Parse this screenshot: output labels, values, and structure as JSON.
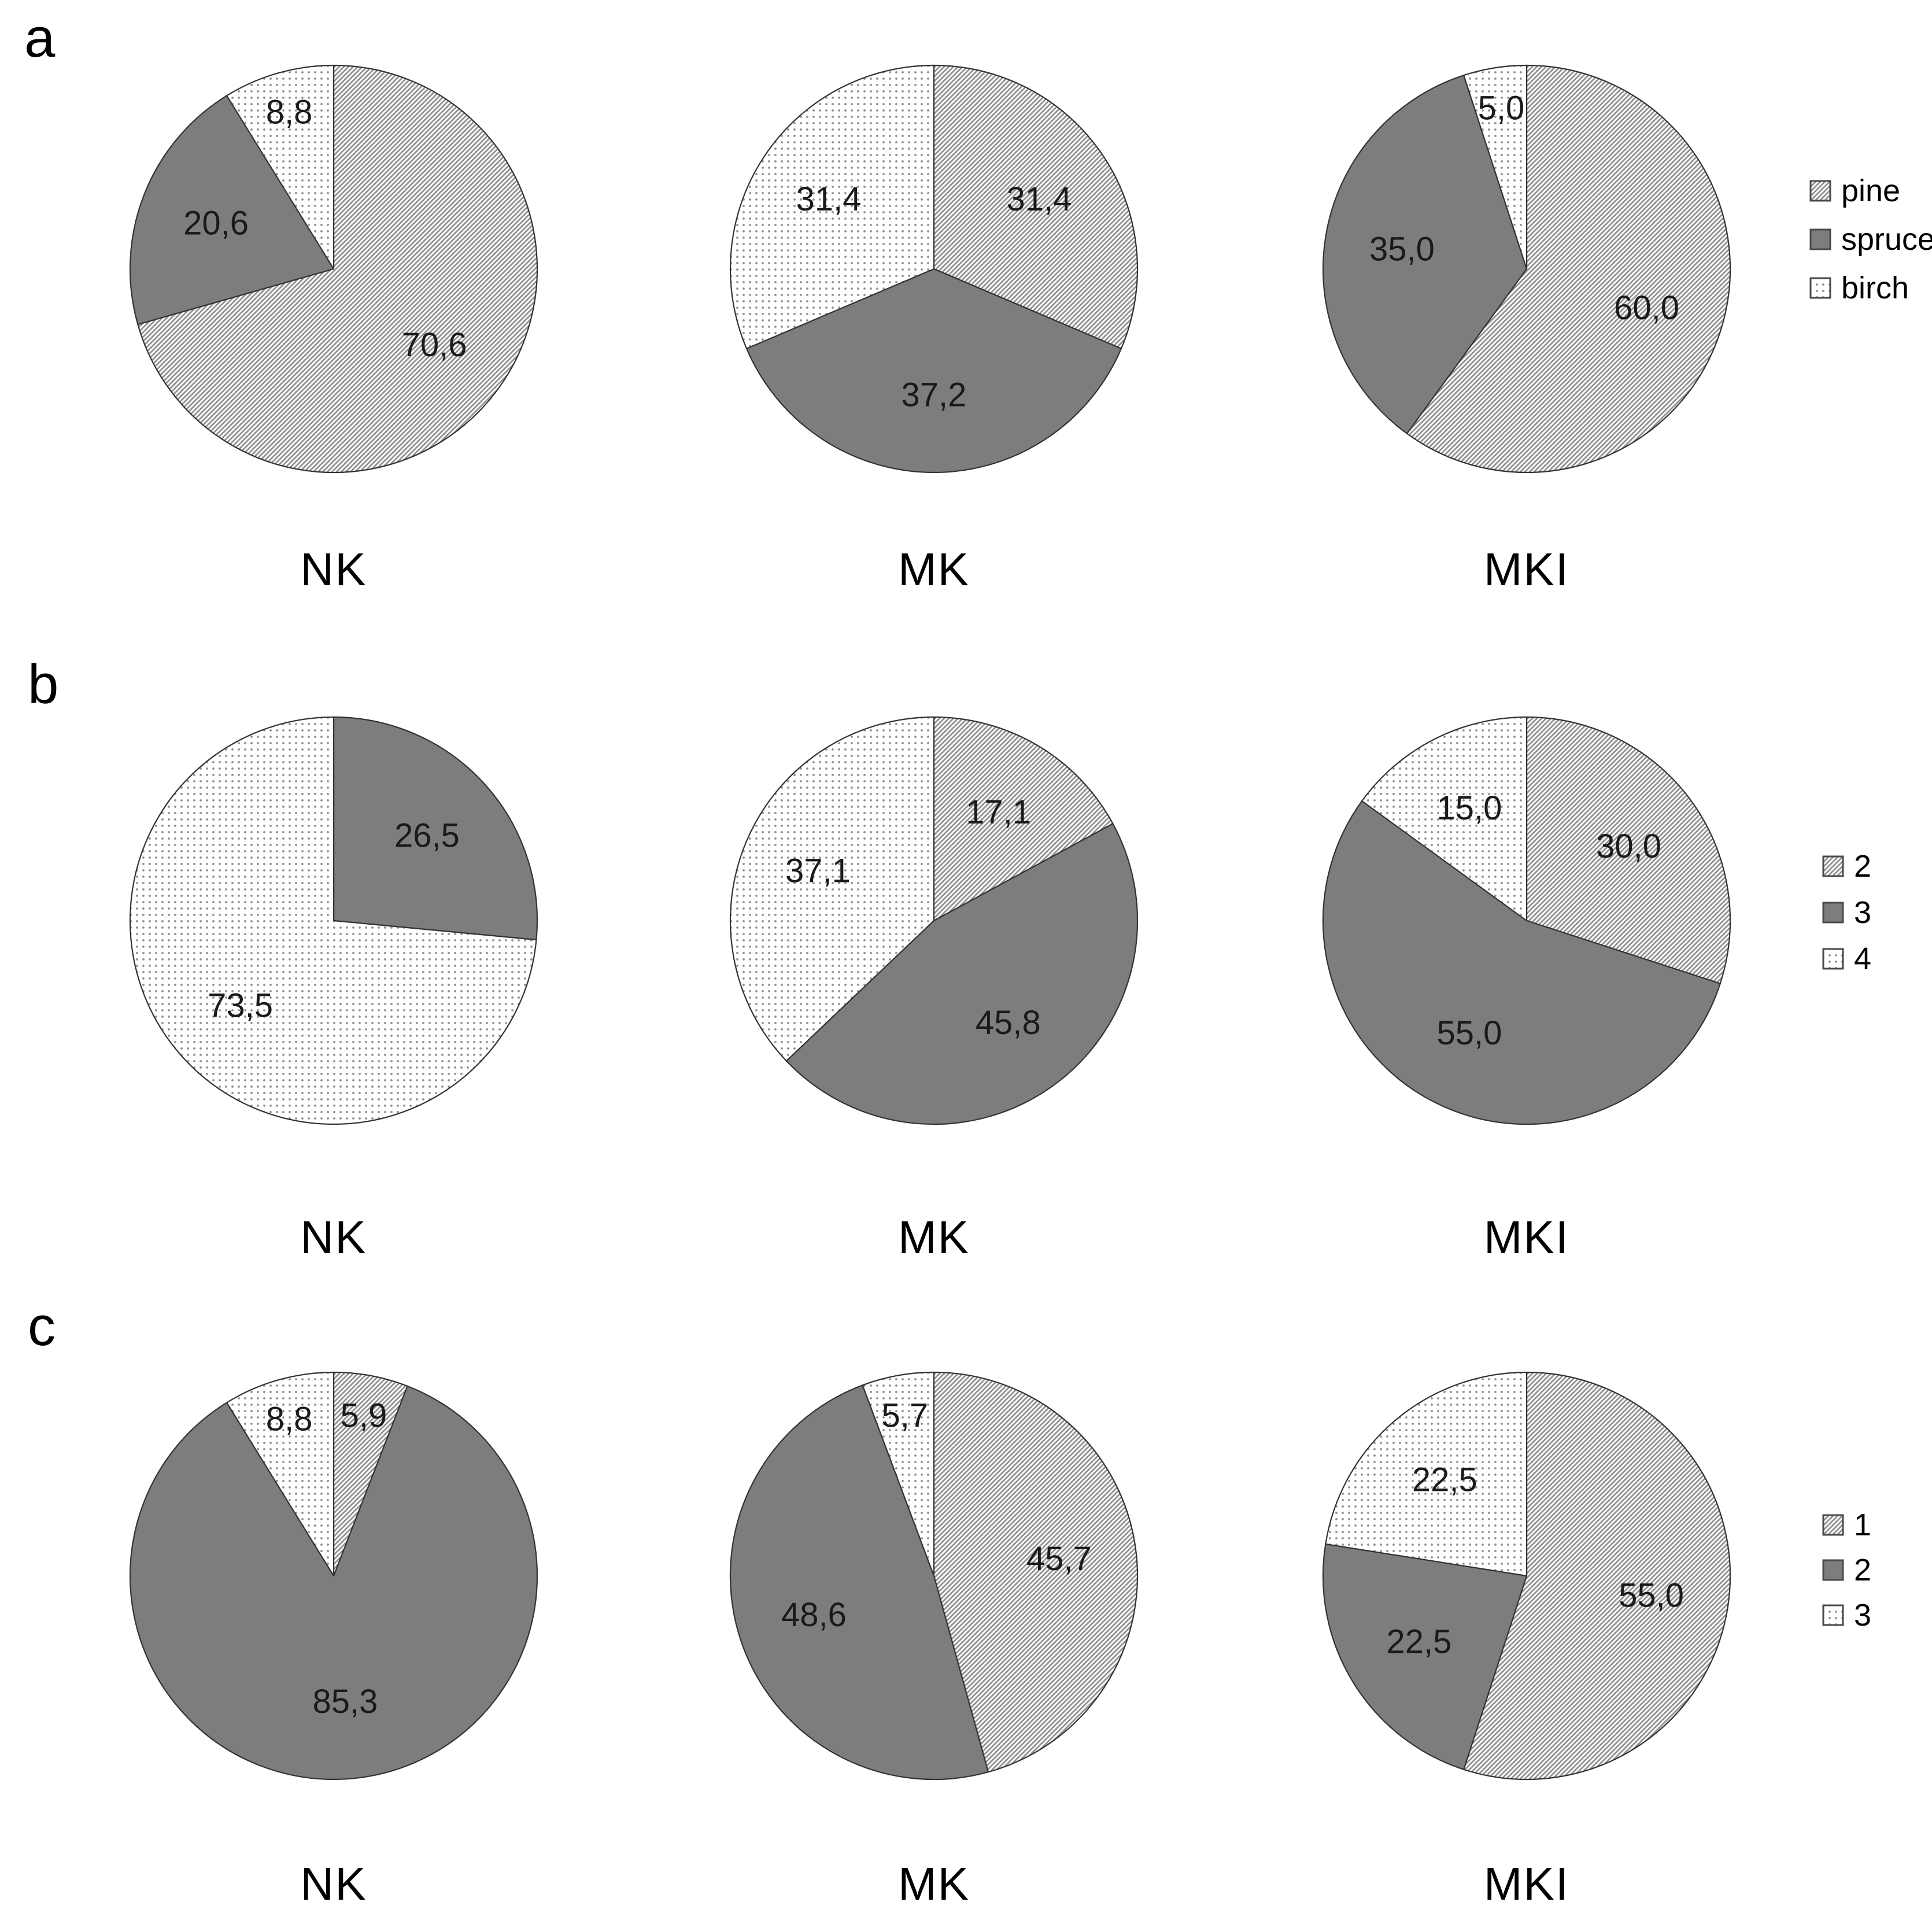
{
  "figure": {
    "panels": [
      {
        "label": "a",
        "legend": [
          "pine",
          "spruce",
          "birch"
        ],
        "groups": [
          "NK",
          "MK",
          "MKI"
        ]
      },
      {
        "label": "b",
        "legend": [
          "2",
          "3",
          "4"
        ],
        "groups": [
          "NK",
          "MK",
          "MKI"
        ]
      },
      {
        "label": "c",
        "legend": [
          "1",
          "2",
          "3"
        ],
        "groups": [
          "NK",
          "MK",
          "MKI"
        ]
      }
    ]
  },
  "chart_data": [
    {
      "type": "pie",
      "panel": "a",
      "group": "NK",
      "categories": [
        "pine",
        "spruce",
        "birch"
      ],
      "values": [
        70.6,
        20.6,
        8.8
      ],
      "labels": [
        "70,6",
        "20,6",
        "8,8"
      ],
      "legend_position": "right",
      "start_angle_deg": 0,
      "direction": "clockwise"
    },
    {
      "type": "pie",
      "panel": "a",
      "group": "MK",
      "categories": [
        "pine",
        "spruce",
        "birch"
      ],
      "values": [
        31.4,
        37.2,
        31.4
      ],
      "labels": [
        "31,4",
        "37,2",
        "31,4"
      ],
      "legend_position": "right",
      "start_angle_deg": 0,
      "direction": "clockwise"
    },
    {
      "type": "pie",
      "panel": "a",
      "group": "MKI",
      "categories": [
        "pine",
        "spruce",
        "birch"
      ],
      "values": [
        60.0,
        35.0,
        5.0
      ],
      "labels": [
        "60,0",
        "35,0",
        "5,0"
      ],
      "legend_position": "right",
      "start_angle_deg": 0,
      "direction": "clockwise"
    },
    {
      "type": "pie",
      "panel": "b",
      "group": "NK",
      "categories": [
        "2",
        "3",
        "4"
      ],
      "values": [
        0,
        26.5,
        73.5
      ],
      "labels": [
        "",
        "26,5",
        "73,5"
      ],
      "legend_position": "right",
      "start_angle_deg": 0,
      "direction": "clockwise"
    },
    {
      "type": "pie",
      "panel": "b",
      "group": "MK",
      "categories": [
        "2",
        "3",
        "4"
      ],
      "values": [
        17.1,
        45.8,
        37.1
      ],
      "labels": [
        "17,1",
        "45,8",
        "37,1"
      ],
      "legend_position": "right",
      "start_angle_deg": 0,
      "direction": "clockwise"
    },
    {
      "type": "pie",
      "panel": "b",
      "group": "MKI",
      "categories": [
        "2",
        "3",
        "4"
      ],
      "values": [
        30.0,
        55.0,
        15.0
      ],
      "labels": [
        "30,0",
        "55,0",
        "15,0"
      ],
      "legend_position": "right",
      "start_angle_deg": 0,
      "direction": "clockwise"
    },
    {
      "type": "pie",
      "panel": "c",
      "group": "NK",
      "categories": [
        "1",
        "2",
        "3"
      ],
      "values": [
        5.9,
        85.3,
        8.8
      ],
      "labels": [
        "5,9",
        "85,3",
        "8,8"
      ],
      "legend_position": "right",
      "start_angle_deg": 0,
      "direction": "clockwise"
    },
    {
      "type": "pie",
      "panel": "c",
      "group": "MK",
      "categories": [
        "1",
        "2",
        "3"
      ],
      "values": [
        45.7,
        48.6,
        5.7
      ],
      "labels": [
        "45,7",
        "48,6",
        "5,7"
      ],
      "legend_position": "right",
      "start_angle_deg": 0,
      "direction": "clockwise"
    },
    {
      "type": "pie",
      "panel": "c",
      "group": "MKI",
      "categories": [
        "1",
        "2",
        "3"
      ],
      "values": [
        55.0,
        22.5,
        22.5
      ],
      "labels": [
        "55,0",
        "22,5",
        "22,5"
      ],
      "legend_position": "right",
      "start_angle_deg": 0,
      "direction": "clockwise"
    }
  ],
  "styles": {
    "series_fill_names": [
      "diagonal-hatch",
      "solid-gray",
      "dotted"
    ],
    "solid_gray": "#7d7d7d",
    "hatch_line_color": "#909090",
    "dot_color": "#8d8d8d",
    "slice_outline": "#333333",
    "swatch_border": "#4a4a4a",
    "label_color": "#1a1a1a",
    "background": "#ffffff"
  }
}
